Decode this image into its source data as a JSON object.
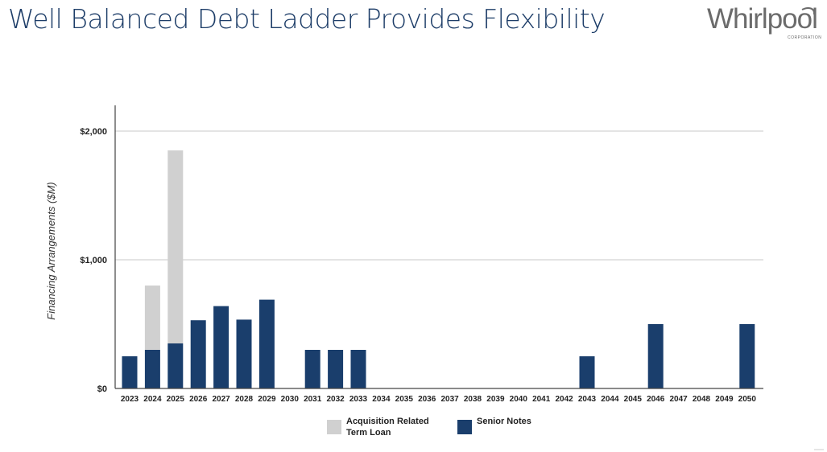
{
  "slide": {
    "title": "Well Balanced Debt Ladder Provides Flexibility"
  },
  "logo": {
    "wordmark": "Whirlpool",
    "subtitle": "CORPORATION"
  },
  "chart_data": {
    "type": "bar",
    "stacked": true,
    "title": "",
    "xlabel": "",
    "ylabel": "Financing Arrangements ($M)",
    "ylim": [
      0,
      2200
    ],
    "yticks": [
      0,
      1000,
      2000
    ],
    "ytick_labels": [
      "$0",
      "$1,000",
      "$2,000"
    ],
    "grid": true,
    "legend_position": "bottom",
    "categories": [
      "2023",
      "2024",
      "2025",
      "2026",
      "2027",
      "2028",
      "2029",
      "2030",
      "2031",
      "2032",
      "2033",
      "2034",
      "2035",
      "2036",
      "2037",
      "2038",
      "2039",
      "2040",
      "2041",
      "2042",
      "2043",
      "2044",
      "2045",
      "2046",
      "2047",
      "2048",
      "2049",
      "2050"
    ],
    "series": [
      {
        "name": "Senior Notes",
        "color": "#1a3e6c",
        "values": [
          250,
          300,
          350,
          530,
          640,
          535,
          690,
          0,
          300,
          300,
          300,
          0,
          0,
          0,
          0,
          0,
          0,
          0,
          0,
          0,
          250,
          0,
          0,
          500,
          0,
          0,
          0,
          500
        ]
      },
      {
        "name": "Acquisition Related\nTerm Loan",
        "color": "#d0d0d0",
        "values": [
          0,
          500,
          1500,
          0,
          0,
          0,
          0,
          0,
          0,
          0,
          0,
          0,
          0,
          0,
          0,
          0,
          0,
          0,
          0,
          0,
          0,
          0,
          0,
          0,
          0,
          0,
          0,
          0
        ]
      }
    ],
    "legend": [
      {
        "label": "Acquisition Related\nTerm Loan",
        "color": "#d0d0d0"
      },
      {
        "label": "Senior Notes",
        "color": "#1a3e6c"
      }
    ]
  }
}
